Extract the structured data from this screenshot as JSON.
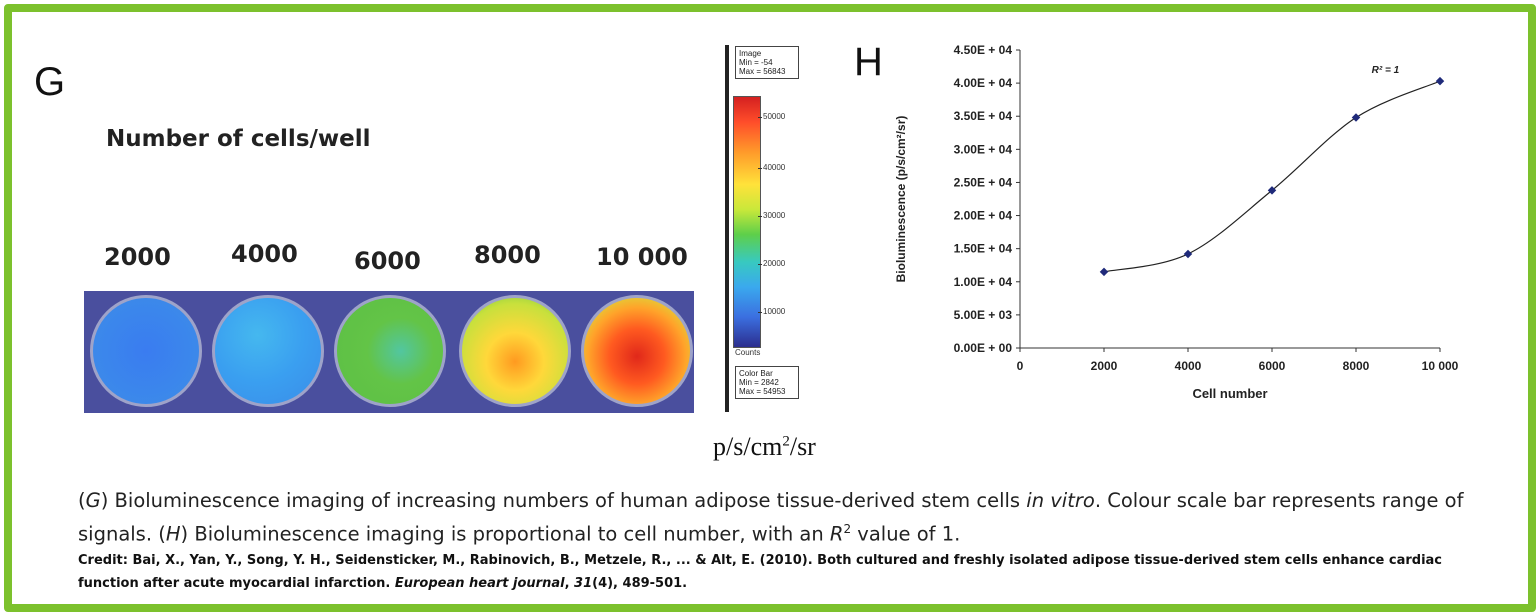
{
  "panel_g": {
    "letter": "G",
    "title": "Number of cells/well",
    "well_labels": [
      "2000",
      "4000",
      "6000",
      "8000",
      "10 000"
    ],
    "unit": "p/s/cm",
    "unit_sup": "2",
    "unit_tail": "/sr",
    "image_box": [
      "Image",
      "Min = -54",
      "Max = 56843"
    ],
    "colorbar_box": [
      "Color Bar",
      "Min = 2842",
      "Max = 54953"
    ],
    "counts_label": "Counts",
    "colorbar_ticks": [
      "50000",
      "40000",
      "30000",
      "20000",
      "10000"
    ]
  },
  "chart_data": {
    "type": "line",
    "letter": "H",
    "annotation": "R² = 1",
    "xlabel": "Cell number",
    "ylabel": "Bioluminescence  (p/s/cm²/sr)",
    "x": [
      2000,
      4000,
      6000,
      8000,
      10000
    ],
    "y": [
      11500,
      14200,
      23800,
      34800,
      40300
    ],
    "xlim": [
      0,
      10000
    ],
    "ylim": [
      0,
      45000
    ],
    "x_ticks": [
      "0",
      "2000",
      "4000",
      "6000",
      "8000",
      "10 000"
    ],
    "y_ticks": [
      "0.00E + 00",
      "5.00E + 03",
      "1.00E + 04",
      "1.50E + 04",
      "2.00E + 04",
      "2.50E + 04",
      "3.00E + 04",
      "3.50E + 04",
      "4.00E + 04",
      "4.50E + 04"
    ],
    "series_color": "#1f2a7a",
    "grid": false
  },
  "caption": {
    "line1_a": "(",
    "line1_g": "G",
    "line1_b": ") Bioluminescence imaging of increasing numbers of human adipose tissue-derived stem cells ",
    "line1_italic": "in vitro",
    "line1_c": ". Colour scale bar represents range of signals. (",
    "line1_h": "H",
    "line1_d": ") Bioluminescence imaging is proportional to cell number, with an ",
    "line1_r": "R",
    "line1_r_sup": "2",
    "line1_e": " value of 1."
  },
  "credit": {
    "part1": "Credit: Bai, X., Yan, Y., Song, Y. H., Seidensticker, M., Rabinovich, B., Metzele, R., ... & Alt, E. (2010). Both cultured and freshly isolated adipose tissue-derived stem cells enhance cardiac function after acute myocardial infarction. ",
    "journal": "European heart journal",
    "part2": ", ",
    "volume": "31",
    "part3": "(4), 489-501."
  },
  "colors": {
    "frame": "#7cc12d",
    "plate_bg": "#4a4f9e"
  }
}
